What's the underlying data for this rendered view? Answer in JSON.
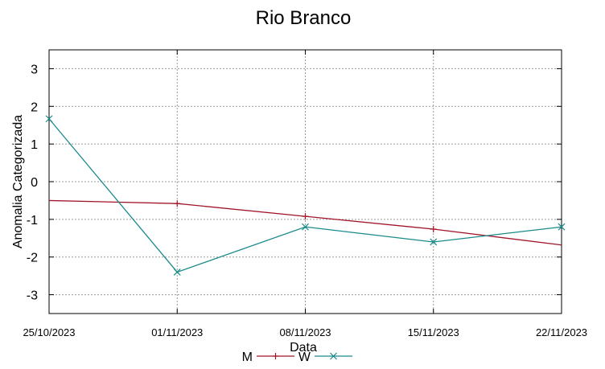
{
  "chart_data": {
    "type": "line",
    "title": "Rio Branco",
    "xlabel": "Data",
    "ylabel": "Anomalia Categorizada",
    "x": [
      "25/10/2023",
      "01/11/2023",
      "08/11/2023",
      "15/11/2023",
      "22/11/2023"
    ],
    "ylim": [
      -3.5,
      3.5
    ],
    "yticks": [
      3,
      2,
      1,
      0,
      -1,
      -2,
      -3
    ],
    "grid": true,
    "legend_position": "bottom",
    "series": [
      {
        "name": "M",
        "color": "#a0152a",
        "marker": "plus",
        "values": [
          -0.5,
          -0.58,
          -0.92,
          -1.26,
          -1.68
        ],
        "show_marker_at": [
          false,
          true,
          true,
          true,
          false
        ]
      },
      {
        "name": "W",
        "color": "#1a8a8a",
        "marker": "x",
        "values": [
          1.67,
          -2.4,
          -1.2,
          -1.6,
          -1.2
        ],
        "show_marker_at": [
          true,
          true,
          true,
          true,
          true
        ]
      }
    ]
  }
}
